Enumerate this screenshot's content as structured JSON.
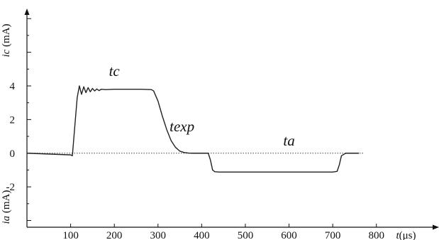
{
  "chart_data": {
    "type": "line",
    "xlabel": "t(μs)",
    "ylabel_top": "ic (mA)",
    "ylabel_bottom": "ia (mA)",
    "xlim": [
      0,
      880
    ],
    "ylim": [
      -4.4,
      8.6
    ],
    "x_ticks": [
      100,
      200,
      300,
      400,
      500,
      600,
      700,
      800
    ],
    "x_tick_labels": [
      "100",
      "200",
      "300",
      "400",
      "500",
      "600",
      "700",
      "800"
    ],
    "y_ticks": [
      4,
      2,
      0,
      -2
    ],
    "y_tick_labels": [
      "4",
      "2",
      "0",
      "-2"
    ],
    "grid": false,
    "zero_line": "dotted",
    "annotations": [
      {
        "text": "tc",
        "x": 200,
        "y": 4.6
      },
      {
        "text": "texp",
        "x": 355,
        "y": 1.3
      },
      {
        "text": "ta",
        "x": 600,
        "y": 0.45
      }
    ],
    "series": [
      {
        "x": [
          0,
          100,
          104,
          107,
          115,
          120,
          125,
          130,
          135,
          140,
          145,
          150,
          155,
          160,
          165,
          170,
          180,
          200,
          230,
          260,
          285,
          290,
          300,
          310,
          320,
          330,
          340,
          350,
          360,
          370,
          380,
          400,
          415,
          420,
          425,
          430,
          440,
          500,
          600,
          700,
          710,
          715,
          720,
          730,
          760
        ],
        "y": [
          0,
          -0.1,
          -0.15,
          0.8,
          3.3,
          4.0,
          3.5,
          3.95,
          3.6,
          3.9,
          3.65,
          3.85,
          3.7,
          3.82,
          3.72,
          3.8,
          3.78,
          3.8,
          3.8,
          3.8,
          3.78,
          3.7,
          3.1,
          2.2,
          1.4,
          0.75,
          0.35,
          0.12,
          0.04,
          0.01,
          0,
          0,
          0,
          -0.4,
          -1.0,
          -1.1,
          -1.12,
          -1.12,
          -1.12,
          -1.12,
          -1.08,
          -0.7,
          -0.15,
          0,
          0
        ]
      }
    ]
  }
}
